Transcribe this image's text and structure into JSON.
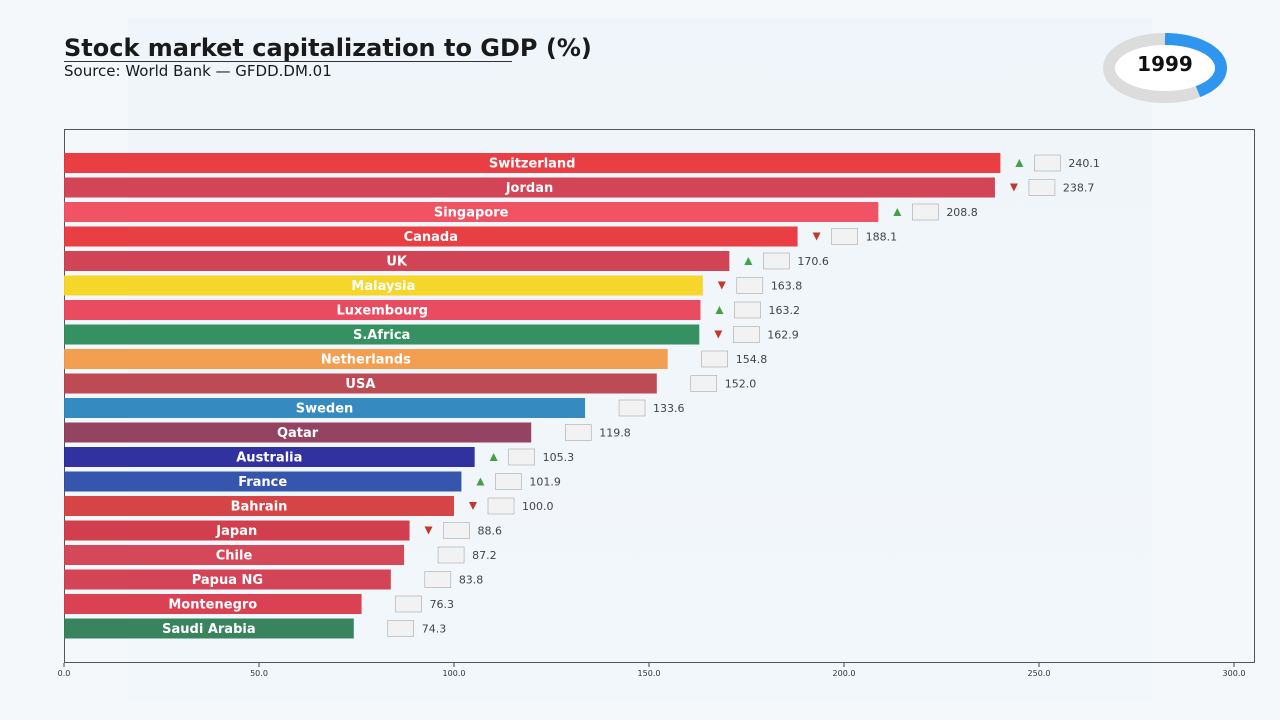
{
  "header": {
    "title": "Stock market capitalization to GDP (%)",
    "subtitle": "Source: World Bank — GFDD.DM.01",
    "year": "1999",
    "year_progress": 0.4
  },
  "chart_data": {
    "type": "bar",
    "orientation": "horizontal",
    "title": "Stock market capitalization to GDP (%)",
    "xlim": [
      0,
      300
    ],
    "xticks": [
      "0.0",
      "50.0",
      "100.0",
      "150.0",
      "200.0",
      "250.0",
      "300.0"
    ],
    "grid": false,
    "categories": [
      "Switzerland",
      "Jordan",
      "Singapore",
      "Canada",
      "UK",
      "Malaysia",
      "Luxembourg",
      "S.Africa",
      "Netherlands",
      "USA",
      "Sweden",
      "Qatar",
      "Australia",
      "France",
      "Bahrain",
      "Japan",
      "Chile",
      "Papua NG",
      "Montenegro",
      "Saudi Arabia"
    ],
    "values": [
      240.1,
      238.7,
      208.8,
      188.1,
      170.6,
      163.8,
      163.2,
      162.9,
      154.8,
      152.0,
      133.6,
      119.8,
      105.3,
      101.9,
      100.0,
      88.6,
      87.2,
      83.8,
      76.3,
      74.3
    ],
    "value_labels": [
      "240.1",
      "238.7",
      "208.8",
      "188.1",
      "170.6",
      "163.8",
      "163.2",
      "162.9",
      "154.8",
      "152.0",
      "133.6",
      "119.8",
      "105.3",
      "101.9",
      "100.0",
      "88.6",
      "87.2",
      "83.8",
      "76.3",
      "74.3"
    ],
    "trend": [
      "up",
      "down",
      "up",
      "down",
      "up",
      "down",
      "up",
      "down",
      "none",
      "none",
      "none",
      "none",
      "up",
      "up",
      "down",
      "down",
      "none",
      "none",
      "none",
      "none"
    ],
    "colors": [
      "#e8343a",
      "#d23a4e",
      "#ee4a5c",
      "#e8343a",
      "#cf3a4c",
      "#f5d420",
      "#e84258",
      "#2a8a5a",
      "#f19a48",
      "#b8414d",
      "#2a85bd",
      "#8e3a5a",
      "#26269a",
      "#2b4ca8",
      "#d33a3c",
      "#cf3545",
      "#d23e50",
      "#d23a4e",
      "#d8384a",
      "#2e7d55"
    ],
    "trend_colors": {
      "up": "#43a047",
      "down": "#c0392b"
    }
  }
}
